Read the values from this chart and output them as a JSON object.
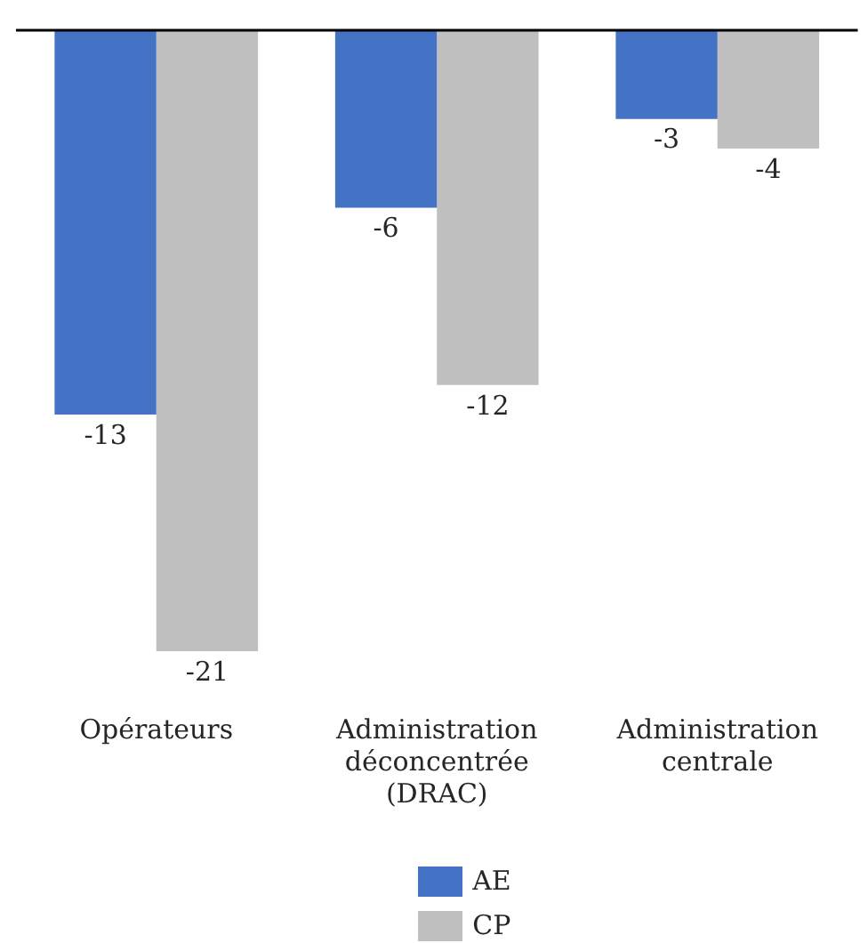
{
  "chart_data": {
    "type": "bar",
    "categories": [
      "Opérateurs",
      "Administration déconcentrée (DRAC)",
      "Administration centrale"
    ],
    "series": [
      {
        "name": "AE",
        "color": "#4472c4",
        "values": [
          -13,
          -6,
          -3
        ]
      },
      {
        "name": "CP",
        "color": "#bfbfbf",
        "values": [
          -21,
          -12,
          -4
        ]
      }
    ],
    "data_labels": true,
    "legend": "bottom",
    "tick_labels": "x"
  }
}
